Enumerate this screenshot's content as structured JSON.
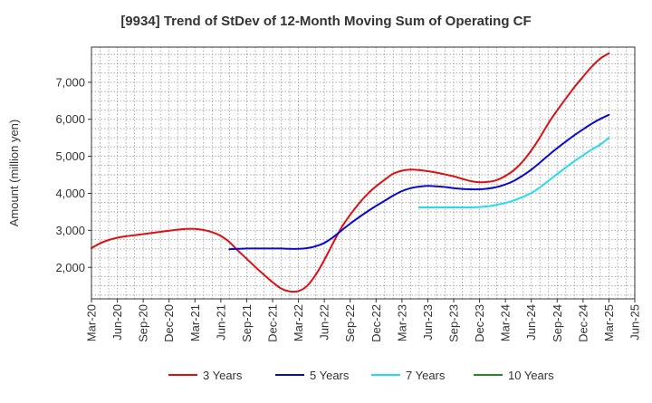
{
  "chart_data": {
    "type": "line",
    "title": "[9934]  Trend of StDev of 12-Month Moving Sum of Operating CF",
    "xlabel": "",
    "ylabel": "Amount (million yen)",
    "ylim": [
      1150,
      7950
    ],
    "y_ticks": [
      2000,
      3000,
      4000,
      5000,
      6000,
      7000
    ],
    "y_tick_labels": [
      "2,000",
      "3,000",
      "4,000",
      "5,000",
      "6,000",
      "7,000"
    ],
    "x_range": [
      0,
      63
    ],
    "x_tick_labels": [
      "Mar-20",
      "Jun-20",
      "Sep-20",
      "Dec-20",
      "Mar-21",
      "Jun-21",
      "Sep-21",
      "Dec-21",
      "Mar-22",
      "Jun-22",
      "Sep-22",
      "Dec-22",
      "Mar-23",
      "Jun-23",
      "Sep-23",
      "Dec-23",
      "Mar-24",
      "Jun-24",
      "Sep-24",
      "Dec-24",
      "Mar-25",
      "Jun-25"
    ],
    "grid": true,
    "legend_position": "bottom",
    "colors": {
      "3y": "#dd1111",
      "5y": "#0a0acc",
      "7y": "#22ddee",
      "10y": "#228b22",
      "grid": "#999999",
      "axis": "#333333",
      "text": "#333333"
    },
    "series": [
      {
        "name": "3 Years",
        "color": "#dd1111",
        "x": [
          0,
          1,
          2,
          3,
          4,
          5,
          6,
          7,
          8,
          9,
          10,
          11,
          12,
          13,
          14,
          15,
          16,
          17,
          18,
          19,
          20,
          21,
          22,
          23,
          24,
          25,
          26,
          27,
          28,
          29,
          30,
          31,
          32,
          33,
          34,
          35,
          36,
          37,
          38,
          39,
          40,
          41,
          42,
          43,
          44,
          45,
          46,
          47,
          48,
          49,
          50,
          51,
          52,
          53,
          54,
          55,
          56,
          57,
          58,
          59,
          60
        ],
        "values": [
          2520,
          2650,
          2740,
          2800,
          2840,
          2870,
          2900,
          2930,
          2960,
          2990,
          3020,
          3040,
          3040,
          3010,
          2950,
          2850,
          2680,
          2450,
          2230,
          2010,
          1800,
          1600,
          1430,
          1350,
          1360,
          1500,
          1800,
          2200,
          2650,
          3080,
          3420,
          3720,
          3980,
          4190,
          4370,
          4530,
          4610,
          4640,
          4630,
          4600,
          4560,
          4510,
          4460,
          4390,
          4330,
          4300,
          4310,
          4360,
          4470,
          4630,
          4860,
          5160,
          5510,
          5900,
          6240,
          6560,
          6870,
          7150,
          7420,
          7640,
          7780
        ]
      },
      {
        "name": "5 Years",
        "color": "#0a0acc",
        "x": [
          16,
          17,
          18,
          19,
          20,
          21,
          22,
          23,
          24,
          25,
          26,
          27,
          28,
          29,
          30,
          31,
          32,
          33,
          34,
          35,
          36,
          37,
          38,
          39,
          40,
          41,
          42,
          43,
          44,
          45,
          46,
          47,
          48,
          49,
          50,
          51,
          52,
          53,
          54,
          55,
          56,
          57,
          58,
          59,
          60
        ],
        "values": [
          2490,
          2500,
          2510,
          2510,
          2510,
          2510,
          2510,
          2500,
          2500,
          2520,
          2570,
          2660,
          2810,
          3000,
          3180,
          3350,
          3510,
          3660,
          3800,
          3940,
          4060,
          4140,
          4180,
          4200,
          4190,
          4170,
          4140,
          4120,
          4110,
          4110,
          4130,
          4170,
          4240,
          4340,
          4480,
          4640,
          4830,
          5030,
          5220,
          5400,
          5570,
          5730,
          5880,
          6010,
          6120
        ]
      },
      {
        "name": "7 Years",
        "color": "#22ddee",
        "x": [
          38,
          39,
          40,
          41,
          42,
          43,
          44,
          45,
          46,
          47,
          48,
          49,
          50,
          51,
          52,
          53,
          54,
          55,
          56,
          57,
          58,
          59,
          60
        ],
        "values": [
          3620,
          3620,
          3620,
          3620,
          3620,
          3620,
          3620,
          3630,
          3650,
          3690,
          3740,
          3810,
          3900,
          4010,
          4160,
          4340,
          4520,
          4700,
          4870,
          5030,
          5180,
          5320,
          5500
        ]
      },
      {
        "name": "10 Years",
        "color": "#228b22",
        "x": [],
        "values": []
      }
    ]
  }
}
